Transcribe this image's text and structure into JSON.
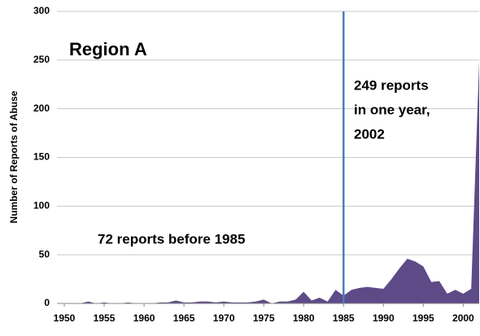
{
  "chart_data": {
    "type": "area",
    "y_label": "Number of Reports of Abuse",
    "annotations": {
      "region": "Region A",
      "peak": [
        "249 reports",
        "in one year,",
        "2002"
      ],
      "before": "72 reports before 1985"
    },
    "vline": 1985,
    "vline_color": "#4a7ebb",
    "color": "#5e4a87",
    "grid": true,
    "x": [
      1950,
      1951,
      1952,
      1953,
      1954,
      1955,
      1956,
      1957,
      1958,
      1959,
      1960,
      1961,
      1962,
      1963,
      1964,
      1965,
      1966,
      1967,
      1968,
      1969,
      1970,
      1971,
      1972,
      1973,
      1974,
      1975,
      1976,
      1977,
      1978,
      1979,
      1980,
      1981,
      1982,
      1983,
      1984,
      1985,
      1986,
      1987,
      1988,
      1989,
      1990,
      1991,
      1992,
      1993,
      1994,
      1995,
      1996,
      1997,
      1998,
      1999,
      2000,
      2001,
      2002
    ],
    "values": [
      0,
      0,
      0,
      2,
      0,
      1,
      0,
      0,
      1,
      0,
      0,
      0,
      1,
      1,
      3,
      1,
      1,
      2,
      2,
      1,
      2,
      1,
      1,
      1,
      2,
      4,
      0,
      2,
      2,
      4,
      12,
      3,
      6,
      2,
      14,
      8,
      14,
      16,
      17,
      16,
      15,
      25,
      36,
      46,
      43,
      38,
      22,
      23,
      10,
      14,
      10,
      15,
      249
    ],
    "xlim": [
      1950,
      2002
    ],
    "xticks": [
      1950,
      1955,
      1960,
      1965,
      1970,
      1975,
      1980,
      1985,
      1990,
      1995,
      2000
    ],
    "ylim": [
      0,
      300
    ],
    "yticks": [
      0,
      50,
      100,
      150,
      200,
      250,
      300
    ]
  }
}
